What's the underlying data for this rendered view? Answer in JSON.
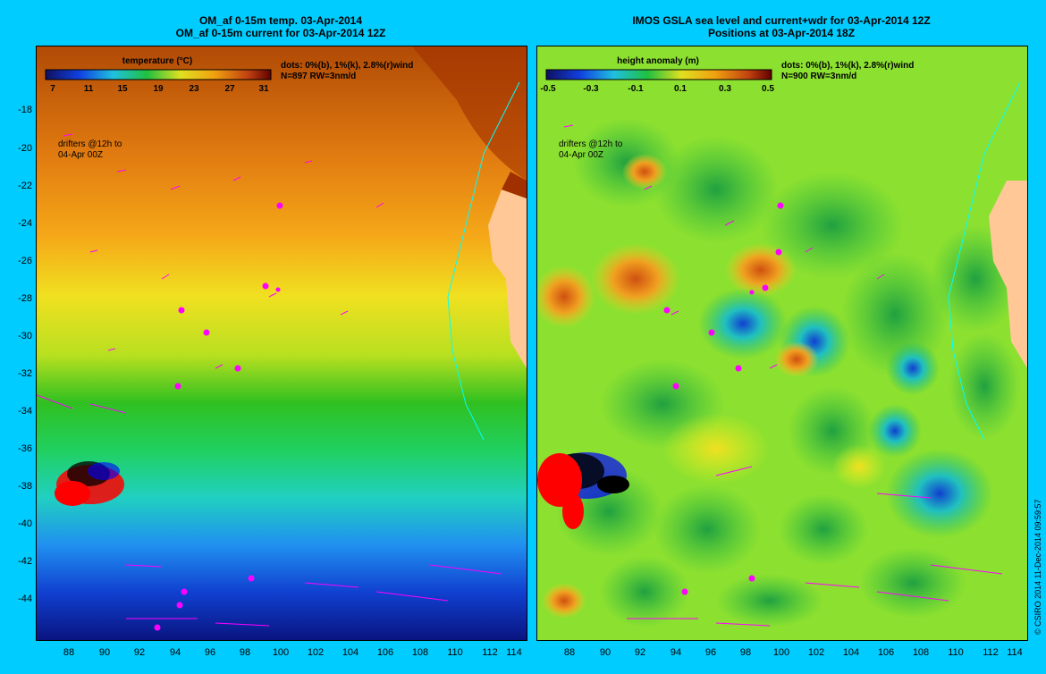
{
  "left": {
    "title_line1": "OM_af 0-15m temp. 03-Apr-2014",
    "title_line2": "OM_af 0-15m current for 03-Apr-2014 12Z",
    "colorbar_label": "temperature (°C)",
    "colorbar_ticks": [
      "7",
      "11",
      "15",
      "19",
      "23",
      "27",
      "31"
    ],
    "dots_line1": "dots: 0%(b), 1%(k), 2.8%(r)wind",
    "dots_line2": "N=897 RW=3nm/d",
    "drifters_line1": "drifters @12h to",
    "drifters_line2": "04-Apr 00Z"
  },
  "right": {
    "title_line1": "IMOS GSLA sea level and current+wdr for 03-Apr-2014 12Z",
    "title_line2": "Positions at 03-Apr-2014 18Z",
    "colorbar_label": "height anomaly (m)",
    "colorbar_ticks": [
      "-0.5",
      "-0.3",
      "-0.1",
      "0.1",
      "0.3",
      "0.5"
    ],
    "dots_line1": "dots: 0%(b), 1%(k), 2.8%(r)wind",
    "dots_line2": "N=900 RW=3nm/d",
    "drifters_line1": "drifters @12h to",
    "drifters_line2": "04-Apr 00Z"
  },
  "y_ticks": [
    "-18",
    "-20",
    "-22",
    "-24",
    "-26",
    "-28",
    "-30",
    "-32",
    "-34",
    "-36",
    "-38",
    "-40",
    "-42",
    "-44"
  ],
  "x_ticks": [
    "88",
    "90",
    "92",
    "94",
    "96",
    "98",
    "100",
    "102",
    "104",
    "106",
    "108",
    "110",
    "112",
    "114"
  ],
  "credit": "© CSIRO 2014   11-Dec-2014 09:59:57",
  "colors": {
    "background": "#00ccff",
    "land": "#ffc896",
    "arrows": "#ff00ff",
    "drifter_red": "#ff0000",
    "drifter_black": "#000000",
    "drifter_blue": "#0000ff"
  }
}
